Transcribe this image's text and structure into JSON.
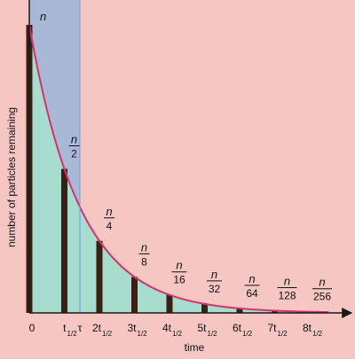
{
  "chart_data": {
    "type": "bar",
    "xlabel": "time",
    "ylabel": "number of particles remaining",
    "x": [
      0,
      1,
      2,
      3,
      4,
      5,
      6,
      7,
      8
    ],
    "values": [
      1,
      0.5,
      0.25,
      0.125,
      0.0625,
      0.03125,
      0.015625,
      0.0078125,
      0.00390625
    ],
    "x_unit": "half-life",
    "ylim": [
      0,
      1.1
    ],
    "curve": "exponential decay",
    "tau_position": 1.4427,
    "tau_label": "τ",
    "x_ticks": [
      {
        "pre": "0",
        "sub": ""
      },
      {
        "pre": "t",
        "sub": "1/2"
      },
      {
        "pre": "2t",
        "sub": "1/2"
      },
      {
        "pre": "3t",
        "sub": "1/2"
      },
      {
        "pre": "4t",
        "sub": "1/2"
      },
      {
        "pre": "5t",
        "sub": "1/2"
      },
      {
        "pre": "6t",
        "sub": "1/2"
      },
      {
        "pre": "7t",
        "sub": "1/2"
      },
      {
        "pre": "8t",
        "sub": "1/2"
      }
    ],
    "bar_labels": [
      {
        "num": "n",
        "den": ""
      },
      {
        "num": "n",
        "den": "2"
      },
      {
        "num": "n",
        "den": "4"
      },
      {
        "num": "n",
        "den": "8"
      },
      {
        "num": "n",
        "den": "16"
      },
      {
        "num": "n",
        "den": "32"
      },
      {
        "num": "n",
        "den": "64"
      },
      {
        "num": "n",
        "den": "128"
      },
      {
        "num": "n",
        "den": "256"
      }
    ],
    "colors": {
      "background": "#f6c7c2",
      "tau_region": "#a9b8d6",
      "under_curve": "#a8dccf",
      "curve": "#d6336c",
      "bars": "#3a1f14",
      "axis": "#1a1a1a"
    }
  }
}
